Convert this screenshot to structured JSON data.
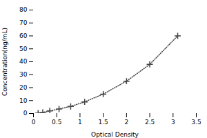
{
  "chart_data": {
    "type": "line",
    "xlabel": "Optical Density",
    "ylabel": "Concentration(ng/mL)",
    "x": [
      0.1,
      0.2,
      0.35,
      0.55,
      0.8,
      1.1,
      1.5,
      2.0,
      2.5,
      3.1
    ],
    "values": [
      0.3,
      0.8,
      2.0,
      3.5,
      5.5,
      9.0,
      15.0,
      25.0,
      38.0,
      60.0
    ],
    "xlim": [
      0,
      3.5
    ],
    "ylim": [
      0,
      80
    ],
    "xticks": [
      0,
      0.5,
      1,
      1.5,
      2,
      2.5,
      3,
      3.5
    ],
    "yticks": [
      0,
      10,
      20,
      30,
      40,
      50,
      60,
      70,
      80
    ],
    "color": "#444444",
    "marker": "plus",
    "line_style": "dotted",
    "grid": false
  }
}
